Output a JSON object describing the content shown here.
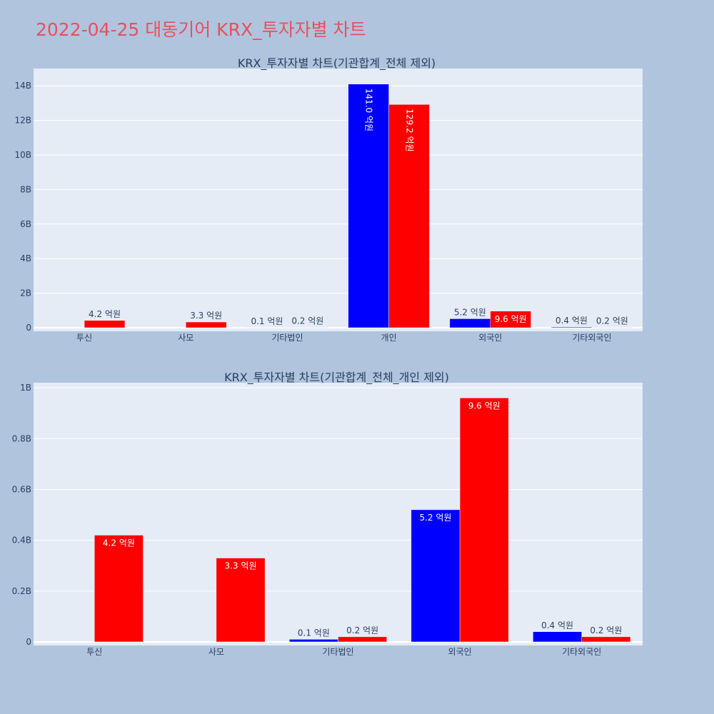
{
  "page_title": "2022-04-25 대동기어 KRX_투자자별 차트",
  "colors": {
    "background": "#b0c4de",
    "plot_background": "#e5ecf6",
    "title": "#e8505b",
    "series_a": "#0000ff",
    "series_b": "#ff0000"
  },
  "chart_data": [
    {
      "type": "bar",
      "title": "KRX_투자자별 차트(기관합계_전체 제외)",
      "categories": [
        "투신",
        "사모",
        "기타법인",
        "개인",
        "외국인",
        "기타외국인"
      ],
      "series": [
        {
          "color": "#0000ff",
          "values": [
            0,
            0,
            10000000,
            14100000000,
            520000000,
            40000000
          ],
          "labels": [
            "",
            "",
            "0.1 억원",
            "141.0 억원",
            "5.2 억원",
            "0.4 억원"
          ]
        },
        {
          "color": "#ff0000",
          "values": [
            420000000,
            330000000,
            20000000,
            12920000000,
            960000000,
            20000000
          ],
          "labels": [
            "4.2 억원",
            "3.3 억원",
            "0.2 억원",
            "129.2 억원",
            "9.6 억원",
            "0.2 억원"
          ]
        }
      ],
      "ylim": [
        0,
        15000000000
      ],
      "yticks": [
        0,
        2000000000,
        4000000000,
        6000000000,
        8000000000,
        10000000000,
        12000000000,
        14000000000
      ],
      "ytick_labels": [
        "0",
        "2B",
        "4B",
        "6B",
        "8B",
        "10B",
        "12B",
        "14B"
      ],
      "grid": true
    },
    {
      "type": "bar",
      "title": "KRX_투자자별 차트(기관합계_전체_개인 제외)",
      "categories": [
        "투신",
        "사모",
        "기타법인",
        "외국인",
        "기타외국인"
      ],
      "series": [
        {
          "color": "#0000ff",
          "values": [
            0,
            0,
            10000000,
            520000000,
            40000000
          ],
          "labels": [
            "",
            "",
            "0.1 억원",
            "5.2 억원",
            "0.4 억원"
          ]
        },
        {
          "color": "#ff0000",
          "values": [
            420000000,
            330000000,
            20000000,
            960000000,
            20000000
          ],
          "labels": [
            "4.2 억원",
            "3.3 억원",
            "0.2 억원",
            "9.6 억원",
            "0.2 억원"
          ]
        }
      ],
      "ylim": [
        0,
        1020000000
      ],
      "yticks": [
        0,
        200000000,
        400000000,
        600000000,
        800000000,
        1000000000
      ],
      "ytick_labels": [
        "0",
        "0.2B",
        "0.4B",
        "0.6B",
        "0.8B",
        "1B"
      ],
      "grid": true
    }
  ]
}
